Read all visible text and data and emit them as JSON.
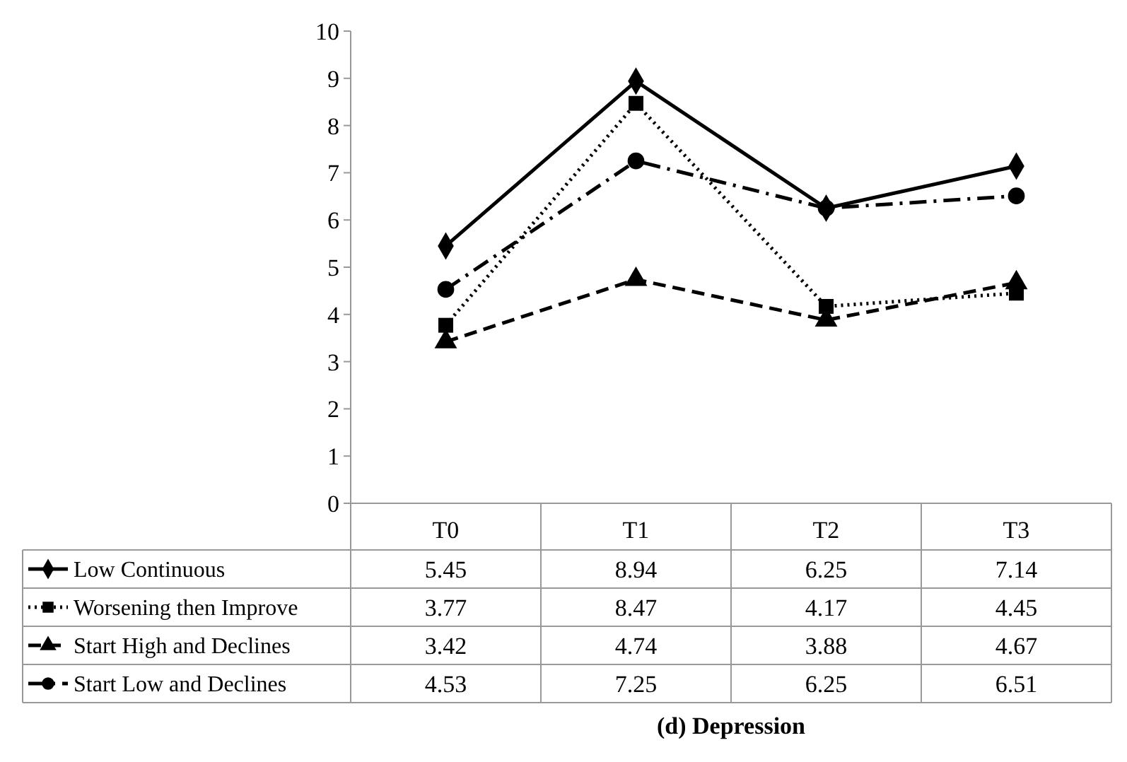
{
  "chart_data": {
    "type": "line",
    "title": "(d) Depression",
    "categories": [
      "T0",
      "T1",
      "T2",
      "T3"
    ],
    "ylim": [
      0,
      10
    ],
    "yticks": [
      0,
      1,
      2,
      3,
      4,
      5,
      6,
      7,
      8,
      9,
      10
    ],
    "grid": false,
    "legend": "bottom left",
    "data_labels": true,
    "series": [
      {
        "name": "Low Continuous",
        "color": "#000000",
        "values": [
          5.45,
          8.94,
          6.25,
          7.14
        ],
        "marker": "diamond",
        "line_style": "solid"
      },
      {
        "name": "Worsening then Improve",
        "color": "#000000",
        "values": [
          3.77,
          8.47,
          4.17,
          4.45
        ],
        "marker": "square",
        "line_style": "dotted"
      },
      {
        "name": "Start High and Declines",
        "color": "#000000",
        "values": [
          3.42,
          4.74,
          3.88,
          4.67
        ],
        "marker": "triangle",
        "line_style": "dashed"
      },
      {
        "name": "Start Low and Declines",
        "color": "#000000",
        "values": [
          4.53,
          7.25,
          6.25,
          6.51
        ],
        "marker": "circle",
        "line_style": "dashdot"
      }
    ]
  }
}
